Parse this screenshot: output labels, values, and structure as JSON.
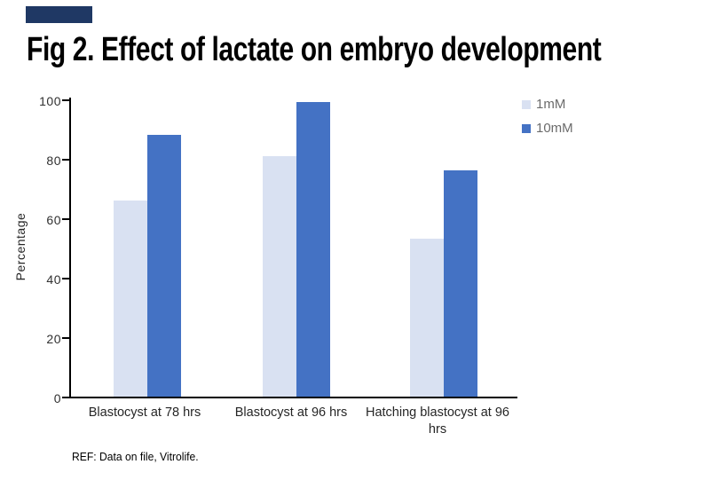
{
  "page": {
    "background": "#ffffff"
  },
  "brand_block": {
    "color": "#1F3864"
  },
  "title": "Fig 2. Effect of lactate on embryo development",
  "chart_data": {
    "type": "bar",
    "title": "Fig 2. Effect of lactate on embryo development",
    "categories": [
      "Blastocyst at 78 hrs",
      "Blastocyst at 96 hrs",
      "Hatching blastocyst at 96 hrs"
    ],
    "series": [
      {
        "name": "1mM",
        "color": "#D9E1F2",
        "values": [
          66,
          81,
          53
        ]
      },
      {
        "name": "10mM",
        "color": "#4472C4",
        "values": [
          88,
          99,
          76
        ]
      }
    ],
    "xlabel": "",
    "ylabel": "Percentage",
    "ylim": [
      0,
      100
    ],
    "yticks": [
      0,
      20,
      40,
      60,
      80,
      100
    ],
    "grid": false,
    "legend_position": "top-right"
  },
  "footer": {
    "ref_text": "REF: Data on file, Vitrolife."
  }
}
